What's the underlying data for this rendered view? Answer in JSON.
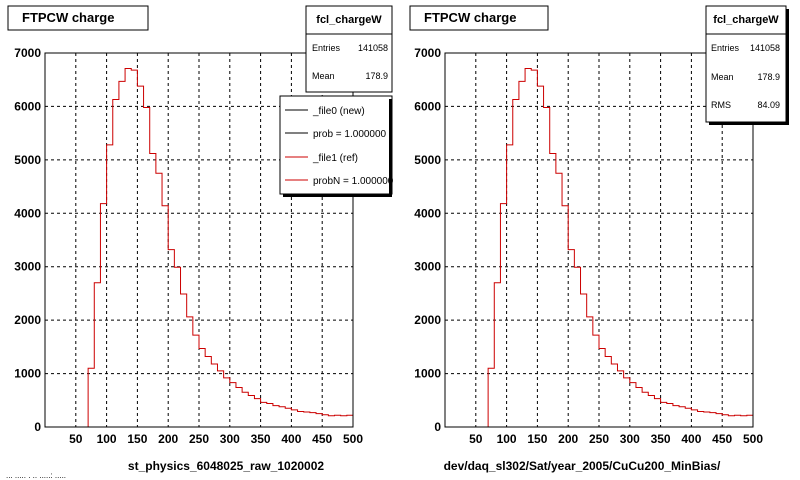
{
  "chart_data": [
    {
      "type": "bar",
      "title": "FTPCW charge",
      "xlabel": "st_physics_6048025_raw_1020002",
      "ylabel": "",
      "xlim": [
        0,
        500
      ],
      "ylim": [
        0,
        7000
      ],
      "grid": true,
      "xticks": [
        "50",
        "100",
        "150",
        "200",
        "250",
        "300",
        "350",
        "400",
        "450",
        "500"
      ],
      "yticks": [
        "0",
        "1000",
        "2000",
        "3000",
        "4000",
        "5000",
        "6000",
        "7000"
      ],
      "stats": {
        "name": "fcl_chargeW",
        "rows": [
          {
            "label": "Entries",
            "value": "141058"
          },
          {
            "label": "Mean",
            "value": "178.9"
          }
        ]
      },
      "legend": {
        "position": "top-right",
        "entries": [
          {
            "label": "_file0 (new)",
            "color": "#000000"
          },
          {
            "label": "prob = 1.000000",
            "color": "#000000"
          },
          {
            "label": "_file1 (ref)",
            "color": "#cc0000"
          },
          {
            "label": "probN = 1.000000",
            "color": "#cc0000"
          }
        ]
      },
      "bin_width": 10,
      "bin_start": 0,
      "series": [
        {
          "name": "_file1 (ref)",
          "color": "#cc0000",
          "values": [
            0,
            0,
            0,
            0,
            0,
            0,
            0,
            1100,
            2700,
            4180,
            5280,
            6130,
            6470,
            6710,
            6680,
            6380,
            5980,
            5120,
            4750,
            4140,
            3320,
            2990,
            2490,
            2060,
            1720,
            1470,
            1320,
            1180,
            1050,
            920,
            830,
            740,
            650,
            590,
            530,
            460,
            440,
            400,
            380,
            350,
            320,
            290,
            280,
            270,
            250,
            230,
            210,
            220,
            210,
            220
          ]
        }
      ]
    },
    {
      "type": "bar",
      "title": "FTPCW charge",
      "xlabel": "dev/daq_sl302/Sat/year_2005/CuCu200_MinBias/",
      "ylabel": "",
      "xlim": [
        0,
        500
      ],
      "ylim": [
        0,
        7000
      ],
      "grid": true,
      "xticks": [
        "50",
        "100",
        "150",
        "200",
        "250",
        "300",
        "350",
        "400",
        "450",
        "500"
      ],
      "yticks": [
        "0",
        "1000",
        "2000",
        "3000",
        "4000",
        "5000",
        "6000",
        "7000"
      ],
      "stats": {
        "name": "fcl_chargeW",
        "rows": [
          {
            "label": "Entries",
            "value": "141058"
          },
          {
            "label": "Mean",
            "value": "178.9"
          },
          {
            "label": "RMS",
            "value": "84.09"
          }
        ]
      },
      "bin_width": 10,
      "bin_start": 0,
      "series": [
        {
          "name": "",
          "color": "#cc0000",
          "values": [
            0,
            0,
            0,
            0,
            0,
            0,
            0,
            1100,
            2700,
            4180,
            5280,
            6130,
            6470,
            6710,
            6680,
            6380,
            5980,
            5120,
            4750,
            4140,
            3320,
            2990,
            2490,
            2060,
            1720,
            1470,
            1320,
            1180,
            1050,
            920,
            830,
            740,
            650,
            590,
            530,
            460,
            440,
            400,
            380,
            350,
            320,
            290,
            280,
            270,
            250,
            230,
            210,
            220,
            210,
            220
          ]
        }
      ]
    }
  ],
  "footer_text": "... ..... . .. .....: ....."
}
